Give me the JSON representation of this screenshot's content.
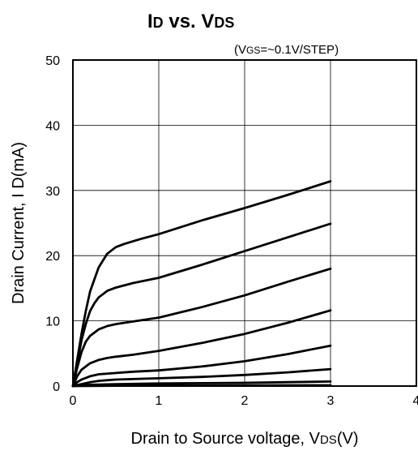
{
  "chart_data": {
    "type": "line",
    "title": {
      "main_1": "I",
      "sub_1": "D",
      "mid": " vs. V",
      "sub_2": "DS"
    },
    "note": {
      "pre": "(V",
      "sub": "GS",
      "post": "=~0.1V/STEP)"
    },
    "xlabel": {
      "pre": "Drain to Source voltage, V",
      "sub": "DS",
      "post": "(V)"
    },
    "ylabel": "Drain Current, I D(mA)",
    "xlim": [
      0,
      4
    ],
    "ylim": [
      0,
      50
    ],
    "x_ticks": [
      "0",
      "1",
      "2",
      "3",
      "4"
    ],
    "y_ticks": [
      "0",
      "10",
      "20",
      "30",
      "40",
      "50"
    ],
    "x_tick_values": [
      0,
      1,
      2,
      3,
      4
    ],
    "y_tick_values": [
      0,
      10,
      20,
      30,
      40,
      50
    ],
    "grid": true,
    "line_color": "#000000",
    "series": [
      {
        "x": [
          0,
          0.05,
          0.1,
          0.15,
          0.2,
          0.3,
          0.4,
          0.5,
          0.6,
          0.8,
          1.0,
          1.5,
          2.0,
          2.5,
          3.0
        ],
        "y": [
          0,
          4,
          8,
          11.5,
          14.5,
          18.2,
          20.3,
          21.3,
          21.8,
          22.6,
          23.3,
          25.4,
          27.3,
          29.3,
          31.4
        ]
      },
      {
        "x": [
          0,
          0.05,
          0.1,
          0.15,
          0.2,
          0.25,
          0.3,
          0.4,
          0.5,
          0.7,
          1.0,
          1.5,
          2.0,
          2.5,
          3.0
        ],
        "y": [
          0,
          3.5,
          7,
          9.5,
          11.5,
          12.7,
          13.6,
          14.6,
          15.1,
          15.8,
          16.6,
          18.6,
          20.7,
          22.8,
          24.9
        ]
      },
      {
        "x": [
          0,
          0.05,
          0.1,
          0.15,
          0.2,
          0.3,
          0.4,
          0.5,
          0.7,
          1.0,
          1.5,
          2.0,
          2.5,
          3.0
        ],
        "y": [
          0,
          2.8,
          5.2,
          6.8,
          7.7,
          8.7,
          9.2,
          9.5,
          9.9,
          10.5,
          12.1,
          13.9,
          16.0,
          18.0
        ]
      },
      {
        "x": [
          0,
          0.05,
          0.1,
          0.2,
          0.3,
          0.4,
          0.5,
          0.7,
          1.0,
          1.5,
          2.0,
          2.5,
          3.0
        ],
        "y": [
          0,
          1.5,
          2.5,
          3.5,
          4.0,
          4.3,
          4.5,
          4.8,
          5.4,
          6.6,
          8.0,
          9.7,
          11.6
        ]
      },
      {
        "x": [
          0,
          0.05,
          0.1,
          0.2,
          0.3,
          0.5,
          0.7,
          1.0,
          1.5,
          2.0,
          2.5,
          3.0
        ],
        "y": [
          0,
          0.6,
          1.0,
          1.5,
          1.8,
          2.0,
          2.2,
          2.4,
          3.0,
          3.8,
          4.9,
          6.2
        ]
      },
      {
        "x": [
          0,
          0.1,
          0.2,
          0.3,
          0.5,
          1.0,
          1.5,
          2.0,
          2.5,
          3.0
        ],
        "y": [
          0,
          0.3,
          0.6,
          0.8,
          1.0,
          1.2,
          1.4,
          1.7,
          2.1,
          2.6
        ]
      },
      {
        "x": [
          0,
          0.2,
          0.5,
          1.0,
          1.5,
          2.0,
          2.5,
          3.0
        ],
        "y": [
          0,
          0.2,
          0.3,
          0.4,
          0.45,
          0.5,
          0.6,
          0.7
        ]
      },
      {
        "x": [
          0,
          0.5,
          1.0,
          2.0,
          3.0
        ],
        "y": [
          0,
          0.05,
          0.08,
          0.1,
          0.12
        ]
      }
    ]
  }
}
